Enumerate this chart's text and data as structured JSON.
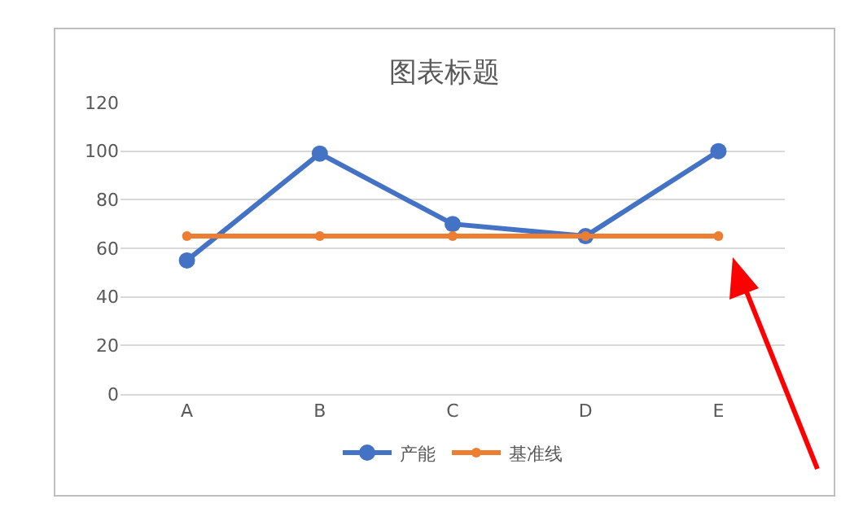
{
  "chart_data": {
    "type": "line",
    "title": "图表标题",
    "categories": [
      "A",
      "B",
      "C",
      "D",
      "E"
    ],
    "series": [
      {
        "name": "产能",
        "color": "#4472c4",
        "values": [
          55,
          99,
          70,
          65,
          100
        ]
      },
      {
        "name": "基准线",
        "color": "#ed7d31",
        "values": [
          65,
          65,
          65,
          65,
          65
        ]
      }
    ],
    "ylim": [
      0,
      120
    ],
    "yticks": [
      0,
      20,
      40,
      60,
      80,
      100,
      120
    ],
    "grid": "y",
    "legend": "bottom",
    "marker": "circle",
    "line_style": "solid"
  }
}
